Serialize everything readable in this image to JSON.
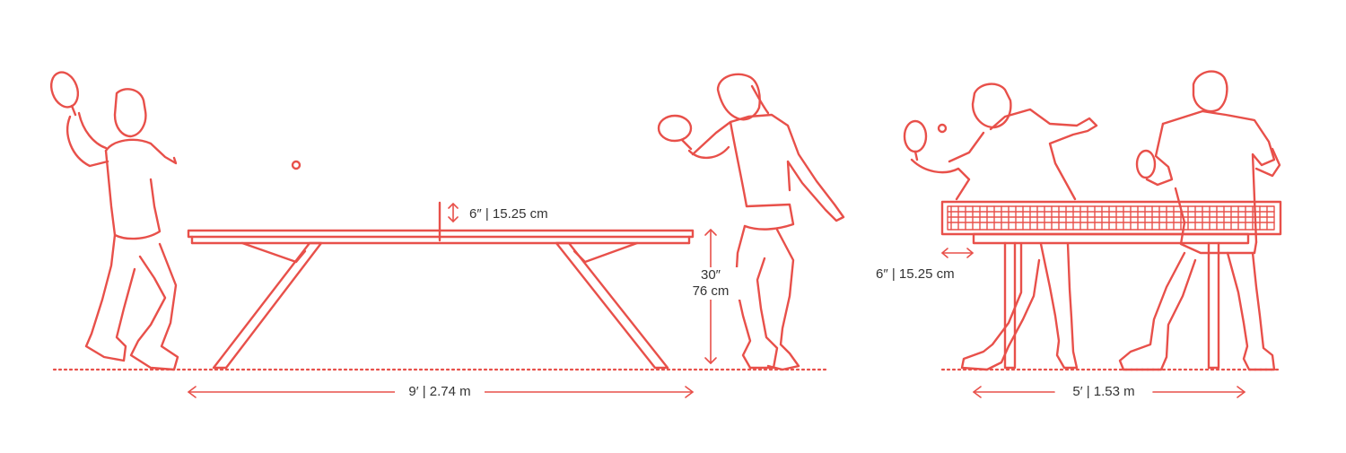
{
  "colors": {
    "stroke": "#e8504a",
    "text": "#333333",
    "background": "#ffffff"
  },
  "labels": {
    "net_height_side": "6″ | 15.25 cm",
    "table_height_imperial": "30″",
    "table_height_metric": "76 cm",
    "table_length": "9′ | 2.74 m",
    "net_overhang": "6″ | 15.25 cm",
    "table_width": "5′ | 1.53 m"
  }
}
